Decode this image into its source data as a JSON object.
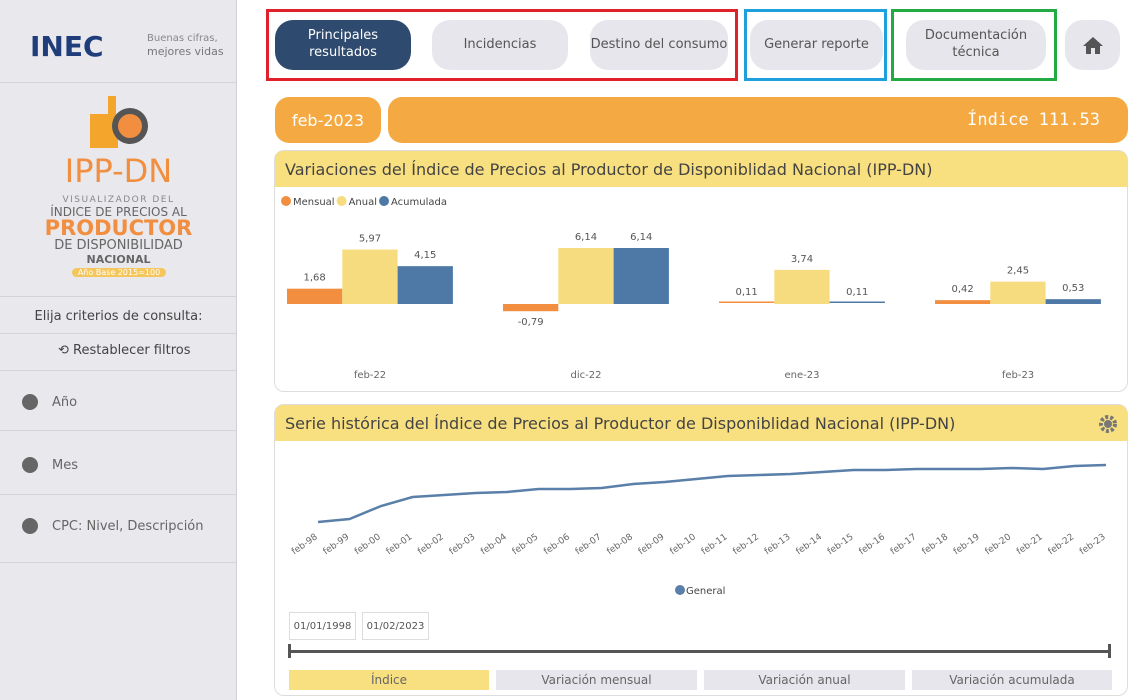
{
  "sidebar": {
    "brand": "INEC",
    "tagline_1": "Buenas cifras,",
    "tagline_2": "mejores vidas",
    "logo": "IPP-DN",
    "subtitle_1": "VISUALIZADOR DEL",
    "subtitle_2": "ÍNDICE DE PRECIOS AL",
    "subtitle_3": "PRODUCTOR",
    "subtitle_4": "DE DISPONIBILIDAD",
    "subtitle_5": "NACIONAL",
    "base": "Año Base 2015=100",
    "prompt": "Elija criterios de consulta:",
    "reset": "Restablecer filtros",
    "filters": [
      "Año",
      "Mes",
      "CPC: Nivel, Descripción"
    ]
  },
  "nav": {
    "buttons": [
      "Principales resultados",
      "Incidencias",
      "Destino del consumo",
      "Generar reporte",
      "Documentación técnica"
    ]
  },
  "banner": {
    "period": "feb-2023",
    "label": "Índice",
    "value": 111.53
  },
  "chart_data": [
    {
      "type": "bar",
      "title": "Variaciones del Índice de Precios al Productor de Disponiblidad Nacional (IPP-DN)",
      "categories": [
        "feb-22",
        "dic-22",
        "ene-23",
        "feb-23"
      ],
      "series": [
        {
          "name": "Mensual",
          "color": "#f28e3f",
          "values": [
            1.68,
            -0.79,
            0.11,
            0.42
          ],
          "value_labels": [
            "1,68",
            "-0,79",
            "0,11",
            "0,42"
          ]
        },
        {
          "name": "Anual",
          "color": "#f7dc7f",
          "values": [
            5.97,
            6.14,
            3.74,
            2.45
          ],
          "value_labels": [
            "5,97",
            "6,14",
            "3,74",
            "2,45"
          ]
        },
        {
          "name": "Acumulada",
          "color": "#4e79a7",
          "values": [
            4.15,
            6.14,
            0.11,
            0.53
          ],
          "value_labels": [
            "4,15",
            "6,14",
            "0,11",
            "0,53"
          ]
        }
      ]
    },
    {
      "type": "line",
      "title": "Serie histórica del Índice de Precios al Productor de Disponiblidad Nacional (IPP-DN)",
      "x": [
        "feb-98",
        "feb-99",
        "feb-00",
        "feb-01",
        "feb-02",
        "feb-03",
        "feb-04",
        "feb-05",
        "feb-06",
        "feb-07",
        "feb-08",
        "feb-09",
        "feb-10",
        "feb-11",
        "feb-12",
        "feb-13",
        "feb-14",
        "feb-15",
        "feb-16",
        "feb-17",
        "feb-18",
        "feb-19",
        "feb-20",
        "feb-21",
        "feb-22",
        "feb-23"
      ],
      "series": [
        {
          "name": "General",
          "color": "#5a7fa8",
          "values": [
            40.3,
            44.0,
            60.3,
            71.5,
            74.0,
            76.5,
            77.8,
            81.5,
            81.5,
            82.8,
            87.8,
            90.3,
            94.0,
            97.8,
            99.0,
            100.3,
            102.8,
            105.3,
            105.3,
            106.5,
            106.5,
            106.5,
            107.8,
            106.5,
            110.3,
            111.53
          ]
        }
      ]
    }
  ],
  "controls": {
    "date_start": "01/01/1998",
    "date_end": "01/02/2023",
    "tabs": [
      "Índice",
      "Variación mensual",
      "Variación anual",
      "Variación acumulada"
    ]
  }
}
